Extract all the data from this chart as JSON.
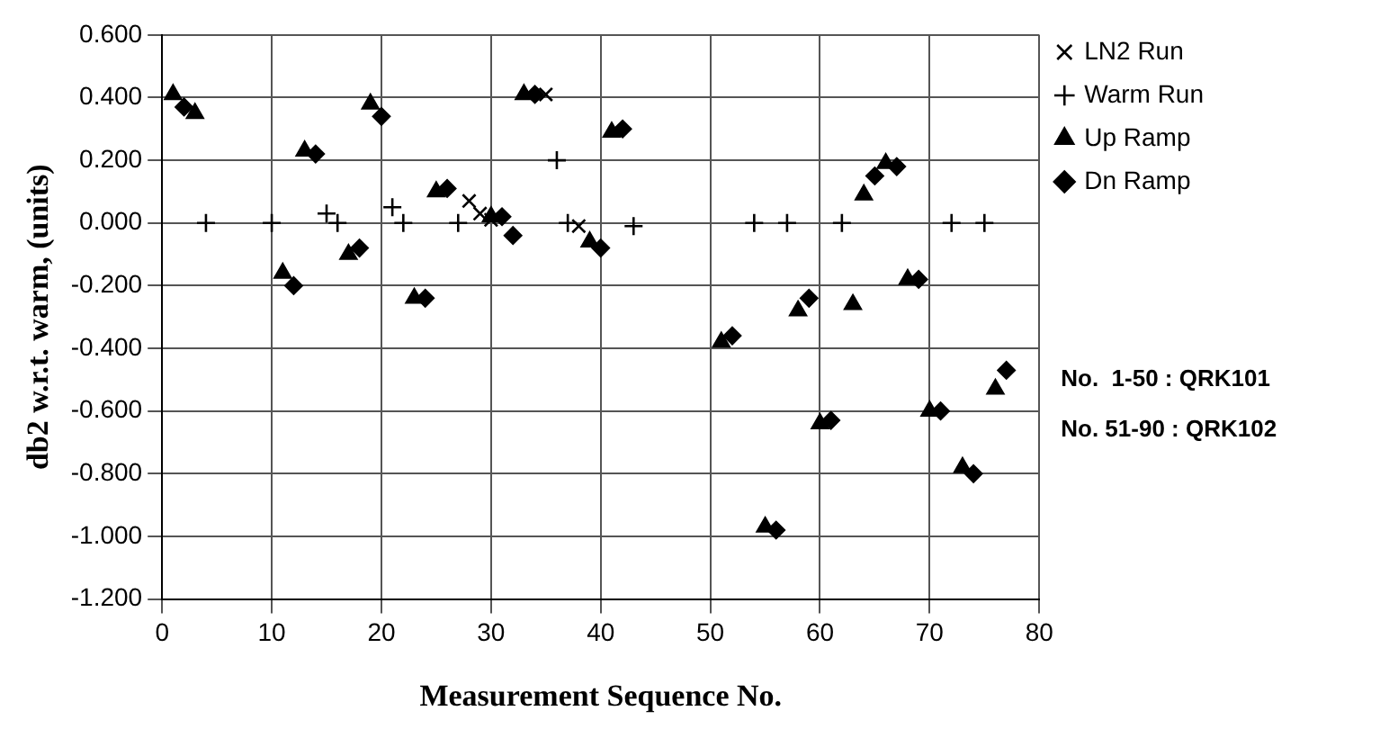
{
  "chart_data": {
    "type": "scatter",
    "xlabel": "Measurement Sequence No.",
    "ylabel": "db2 w.r.t. warm, (units)",
    "xlim": [
      0,
      80
    ],
    "xticks": [
      0,
      10,
      20,
      30,
      40,
      50,
      60,
      70,
      80
    ],
    "ylim": [
      -1.2,
      0.6
    ],
    "yticks": [
      {
        "value": 0.6,
        "label": "0.600"
      },
      {
        "value": 0.4,
        "label": "0.400"
      },
      {
        "value": 0.2,
        "label": "0.200"
      },
      {
        "value": 0,
        "label": "0.000"
      },
      {
        "value": -0.2,
        "label": "-0.200"
      },
      {
        "value": -0.4,
        "label": "-0.400"
      },
      {
        "value": -0.6,
        "label": "-0.600"
      },
      {
        "value": -0.8,
        "label": "-0.800"
      },
      {
        "value": -1.0,
        "label": "-1.000"
      },
      {
        "value": -1.2,
        "label": "-1.200"
      }
    ],
    "grid": true,
    "legend": "top right",
    "series": [
      {
        "name": "LN2 Run",
        "color": "#000000",
        "marker": "cross",
        "x": [
          28,
          29,
          30,
          35,
          38
        ],
        "values": [
          0.07,
          0.03,
          0.01,
          0.41,
          -0.01
        ]
      },
      {
        "name": "Warm Run",
        "color": "#000000",
        "marker": "cross",
        "x": [
          4,
          10,
          15,
          16,
          21,
          22,
          27,
          36,
          37,
          43,
          54,
          57,
          62,
          72,
          75
        ],
        "values": [
          0,
          0,
          0.03,
          0,
          0.05,
          0,
          0,
          0.2,
          0,
          -0.01,
          0,
          0,
          0,
          0,
          0
        ]
      },
      {
        "name": "Up Ramp",
        "color": "#000000",
        "marker": "triangle",
        "x": [
          1,
          3,
          11,
          13,
          17,
          19,
          23,
          25,
          30,
          33,
          39,
          41,
          51,
          55,
          58,
          60,
          63,
          64,
          66,
          68,
          70,
          73,
          76
        ],
        "values": [
          0.41,
          0.35,
          -0.16,
          0.23,
          -0.1,
          0.38,
          -0.24,
          0.1,
          0.02,
          0.41,
          -0.06,
          0.29,
          -0.38,
          -0.97,
          -0.28,
          -0.64,
          -0.26,
          0.09,
          0.19,
          -0.18,
          -0.6,
          -0.78,
          -0.53
        ]
      },
      {
        "name": "Dn Ramp",
        "color": "#000000",
        "marker": "diamond",
        "x": [
          2,
          12,
          14,
          18,
          20,
          24,
          26,
          31,
          32,
          34,
          40,
          42,
          52,
          56,
          59,
          61,
          65,
          67,
          69,
          71,
          74,
          77
        ],
        "values": [
          0.37,
          -0.2,
          0.22,
          -0.08,
          0.34,
          -0.24,
          0.11,
          0.02,
          -0.04,
          0.41,
          -0.08,
          0.3,
          -0.36,
          -0.98,
          -0.24,
          -0.63,
          0.15,
          0.18,
          -0.18,
          -0.6,
          -0.8,
          -0.47
        ]
      }
    ],
    "annotations": [
      "No.  1-50 : QRK101",
      "No. 51-90 : QRK102"
    ]
  }
}
